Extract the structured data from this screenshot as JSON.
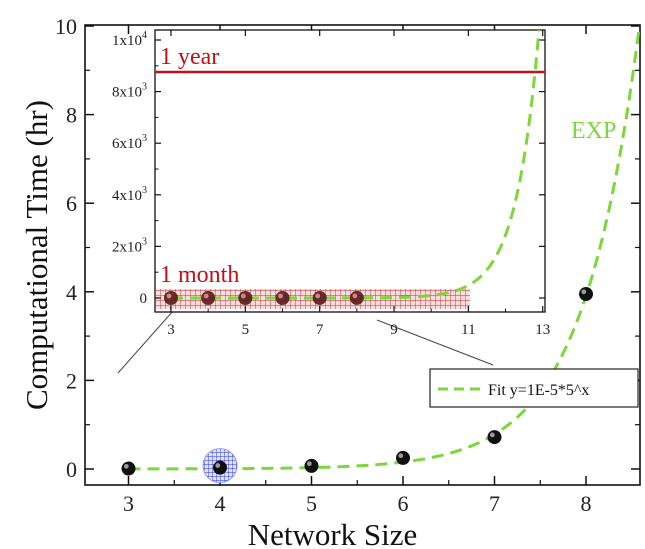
{
  "chart_data": [
    {
      "type": "scatter",
      "title": "",
      "xlabel": "Network Size",
      "ylabel": "Computational Time (hr)",
      "xlim": [
        2.5,
        8.65
      ],
      "ylim": [
        -0.3,
        10
      ],
      "xticks": [
        "3",
        "4",
        "5",
        "6",
        "7",
        "8"
      ],
      "yticks": [
        "0",
        "2",
        "4",
        "6",
        "8",
        "10"
      ],
      "grid": false,
      "series": [
        {
          "kind": "points",
          "x": [
            3,
            4,
            5,
            6,
            7,
            8
          ],
          "y": [
            0.01,
            0.03,
            0.07,
            0.25,
            0.72,
            3.95
          ],
          "color": "#111111"
        },
        {
          "kind": "fit",
          "name": "Fit y=1E-5*5^x",
          "model": "1E-5*5^x",
          "x_range": [
            3,
            8.65
          ],
          "color": "#7dd63b"
        }
      ],
      "highlight_x": 4,
      "highlight_color": "#2a35c8",
      "annotations": [
        "EXP"
      ],
      "legend": {
        "position": "lower-right",
        "entries": [
          "Fit y=1E-5*5^x"
        ]
      }
    },
    {
      "type": "scatter",
      "title": "",
      "xlabel": "",
      "ylabel": "",
      "xlim": [
        2.5,
        13
      ],
      "ylim": [
        -400,
        10000
      ],
      "xticks": [
        "3",
        "5",
        "7",
        "9",
        "11",
        "13"
      ],
      "yticks": [
        "0",
        "2x10",
        "4x10",
        "6x10",
        "8x10",
        "1x10"
      ],
      "ytick_exponents": [
        "",
        "3",
        "3",
        "3",
        "3",
        "4"
      ],
      "grid": false,
      "series": [
        {
          "kind": "points",
          "x": [
            3,
            4,
            5,
            6,
            7,
            8
          ],
          "y": [
            0.01,
            0.03,
            0.07,
            0.25,
            0.72,
            3.95
          ],
          "color": "#111111"
        },
        {
          "kind": "fit",
          "model": "1E-5*5^x",
          "x_range": [
            3,
            13
          ],
          "color": "#7dd63b"
        }
      ],
      "reference_lines": [
        {
          "label": "1 year",
          "y": 8760,
          "color": "#c0101a"
        },
        {
          "label": "1 month",
          "y": 730,
          "color": "#c0101a"
        }
      ],
      "hatch_band": {
        "y": [
          -200,
          200
        ],
        "color": "#d04040"
      }
    }
  ]
}
